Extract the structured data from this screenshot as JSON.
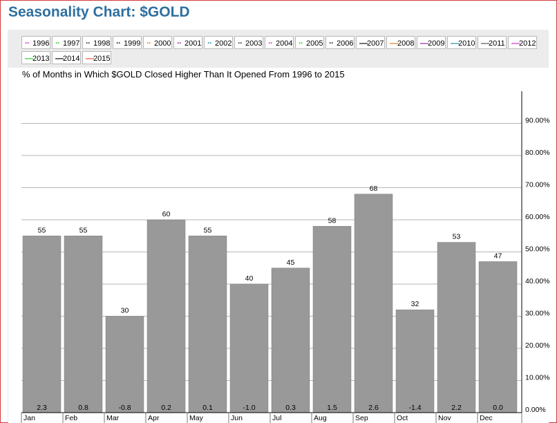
{
  "page": {
    "title": "Seasonality Chart: $GOLD"
  },
  "legend": [
    {
      "label": "1996",
      "color": "#cc33cc",
      "style": "dotted"
    },
    {
      "label": "1997",
      "color": "#33cc33",
      "style": "dotted"
    },
    {
      "label": "1998",
      "color": "#333333",
      "style": "dotted"
    },
    {
      "label": "1999",
      "color": "#333333",
      "style": "dotted"
    },
    {
      "label": "2000",
      "color": "#e67e22",
      "style": "dotted"
    },
    {
      "label": "2001",
      "color": "#9b2c9b",
      "style": "dotted"
    },
    {
      "label": "2002",
      "color": "#2a8fa8",
      "style": "dotted"
    },
    {
      "label": "2003",
      "color": "#333333",
      "style": "dotted"
    },
    {
      "label": "2004",
      "color": "#cc33cc",
      "style": "dotted"
    },
    {
      "label": "2005",
      "color": "#33cc33",
      "style": "dotted"
    },
    {
      "label": "2006",
      "color": "#333333",
      "style": "dotted"
    },
    {
      "label": "2007",
      "color": "#111111",
      "style": "solid"
    },
    {
      "label": "2008",
      "color": "#e67e22",
      "style": "solid"
    },
    {
      "label": "2009",
      "color": "#8e2c9b",
      "style": "solid"
    },
    {
      "label": "2010",
      "color": "#2a8fa8",
      "style": "solid"
    },
    {
      "label": "2011",
      "color": "#555555",
      "style": "solid"
    },
    {
      "label": "2012",
      "color": "#cc33cc",
      "style": "solid"
    },
    {
      "label": "2013",
      "color": "#33cc33",
      "style": "solid"
    },
    {
      "label": "2014",
      "color": "#111111",
      "style": "solid"
    },
    {
      "label": "2015",
      "color": "#e05a3a",
      "style": "solid"
    }
  ],
  "chart_data": {
    "type": "bar",
    "subtitle": "% of Months in Which $GOLD Closed Higher Than It Opened From 1996 to 2015",
    "categories": [
      "Jan",
      "Feb",
      "Mar",
      "Apr",
      "May",
      "Jun",
      "Jul",
      "Aug",
      "Sep",
      "Oct",
      "Nov",
      "Dec"
    ],
    "values": [
      55,
      55,
      30,
      60,
      55,
      40,
      45,
      58,
      68,
      32,
      53,
      47
    ],
    "avg_change": [
      "2.3",
      "0.8",
      "-0.8",
      "0.2",
      "0.1",
      "-1.0",
      "0.3",
      "1.5",
      "2.6",
      "-1.4",
      "2.2",
      "0.0"
    ],
    "y_ticks": [
      "0.00%",
      "10.00%",
      "20.00%",
      "30.00%",
      "40.00%",
      "50.00%",
      "60.00%",
      "70.00%",
      "80.00%",
      "90.00%"
    ],
    "ylim": [
      0,
      100
    ],
    "axis_side": "right",
    "grid": true,
    "bar_color": "#999999"
  }
}
